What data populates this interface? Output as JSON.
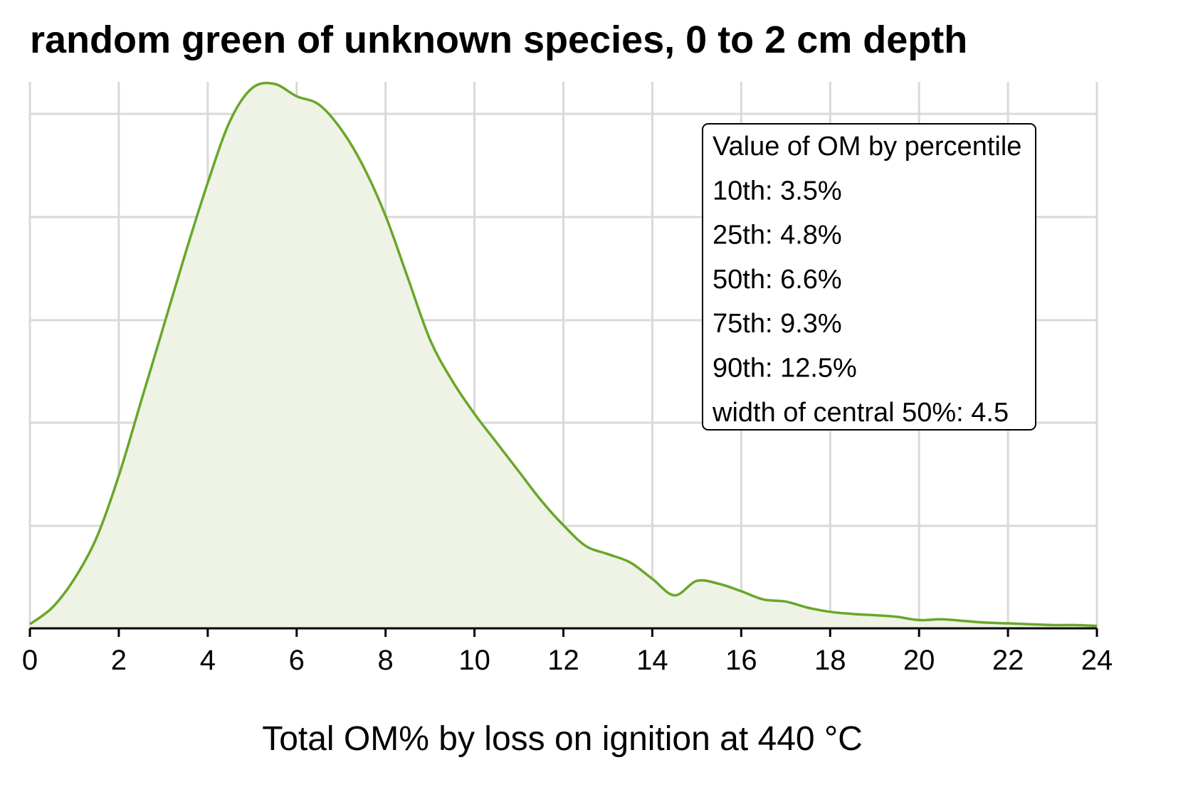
{
  "chart_data": {
    "type": "area",
    "title": "random green of unknown species, 0 to 2 cm depth",
    "xlabel": "Total OM% by loss on ignition at 440 °C",
    "ylabel": "",
    "xlim": [
      0,
      24
    ],
    "ylim": [
      0,
      0.1325
    ],
    "xticks": [
      "0",
      "2",
      "4",
      "6",
      "8",
      "10",
      "12",
      "14",
      "16",
      "18",
      "20",
      "22",
      "24"
    ],
    "grid": true,
    "line_color": "#6aa629",
    "fill_color": "#eef3e6",
    "series": [
      {
        "x": [
          0,
          0.5,
          1,
          1.5,
          2,
          2.5,
          3,
          3.5,
          4,
          4.5,
          5,
          5.5,
          6,
          6.5,
          7,
          7.5,
          8,
          8.5,
          9,
          9.5,
          10,
          10.5,
          11,
          11.5,
          12,
          12.5,
          13,
          13.5,
          14,
          14.5,
          15,
          15.5,
          16,
          16.5,
          17,
          17.5,
          18,
          18.5,
          19,
          19.5,
          20,
          20.5,
          21,
          21.5,
          22,
          22.5,
          23,
          23.5,
          24
        ],
        "y": [
          0.001,
          0.005,
          0.012,
          0.022,
          0.037,
          0.055,
          0.073,
          0.091,
          0.108,
          0.123,
          0.131,
          0.132,
          0.129,
          0.127,
          0.121,
          0.112,
          0.1,
          0.085,
          0.07,
          0.06,
          0.052,
          0.045,
          0.038,
          0.031,
          0.025,
          0.02,
          0.018,
          0.016,
          0.012,
          0.008,
          0.0115,
          0.0108,
          0.009,
          0.007,
          0.0065,
          0.005,
          0.004,
          0.0035,
          0.0032,
          0.0028,
          0.002,
          0.0022,
          0.0018,
          0.0014,
          0.0012,
          0.001,
          0.0008,
          0.0008,
          0.0006
        ]
      }
    ],
    "legend": {
      "placement": "top-right",
      "lines": [
        "Value of OM by percentile",
        "10th: 3.5%",
        "25th: 4.8%",
        "50th: 6.6%",
        "75th: 9.3%",
        "90th: 12.5%",
        "width of central 50%: 4.5"
      ]
    }
  }
}
